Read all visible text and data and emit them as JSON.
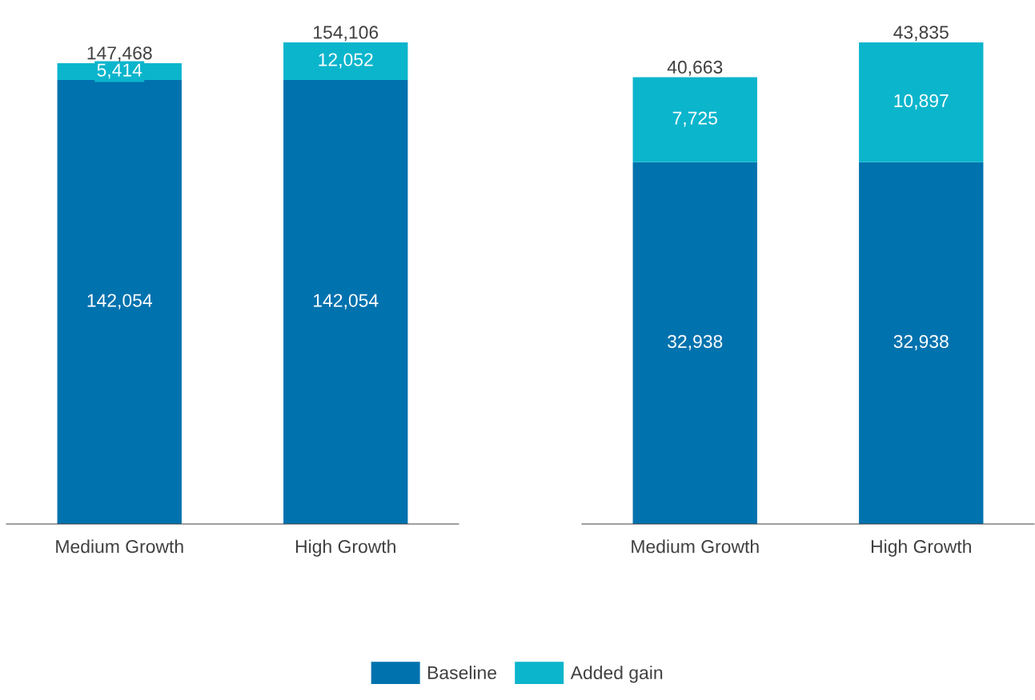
{
  "chart_data": [
    {
      "type": "bar",
      "stacked": true,
      "categories": [
        "Medium Growth",
        "High Growth"
      ],
      "series": [
        {
          "name": "Baseline",
          "color": "#0072ae",
          "values": [
            142054,
            142054
          ],
          "value_labels": [
            "142,054",
            "142,054"
          ]
        },
        {
          "name": "Added gain",
          "color": "#0bb5cc",
          "values": [
            5414,
            12052
          ],
          "value_labels": [
            "5,414",
            "12,052"
          ]
        }
      ],
      "totals": [
        "147,468",
        "154,106"
      ],
      "tick_labels": "x",
      "grid": false,
      "legend": "bottom"
    },
    {
      "type": "bar",
      "stacked": true,
      "categories": [
        "Medium Growth",
        "High Growth"
      ],
      "series": [
        {
          "name": "Baseline",
          "color": "#0072ae",
          "values": [
            32938,
            32938
          ],
          "value_labels": [
            "32,938",
            "32,938"
          ]
        },
        {
          "name": "Added gain",
          "color": "#0bb5cc",
          "values": [
            7725,
            10897
          ],
          "value_labels": [
            "7,725",
            "10,897"
          ]
        }
      ],
      "totals": [
        "40,663",
        "43,835"
      ],
      "tick_labels": "x",
      "grid": false,
      "legend": "bottom"
    }
  ]
}
